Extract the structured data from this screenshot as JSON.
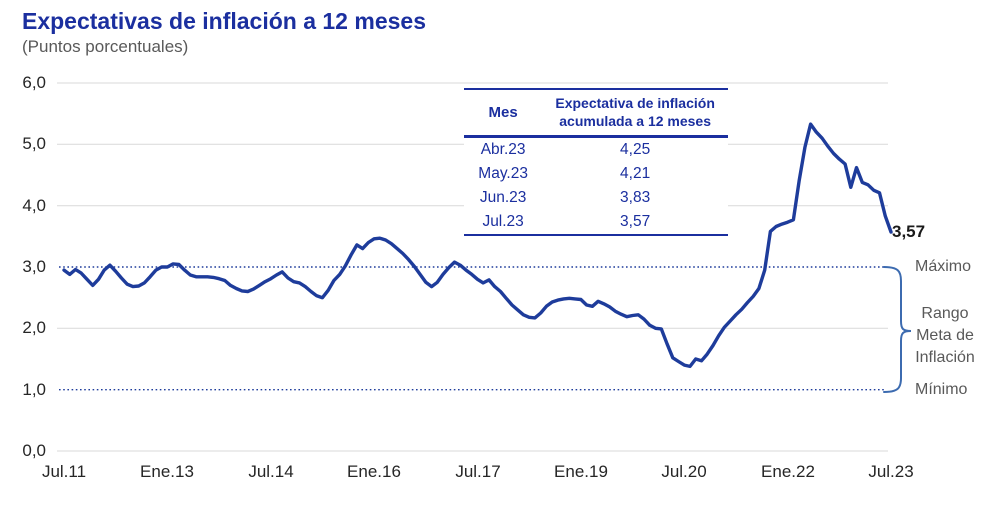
{
  "header": {
    "title": "Expectativas de inflación a 12 meses",
    "subtitle": "(Puntos porcentuales)"
  },
  "chart_data": {
    "type": "line",
    "title": "Expectativas de inflación a 12 meses",
    "ylabel": "(Puntos porcentuales)",
    "xlabel": "",
    "ylim": [
      0,
      6
    ],
    "grid": true,
    "frequency": "monthly",
    "x_start": "Jul.11",
    "x_end": "Jul.23",
    "x_ticks": [
      {
        "label": "Jul.11",
        "month_index": 0
      },
      {
        "label": "Ene.13",
        "month_index": 18
      },
      {
        "label": "Jul.14",
        "month_index": 36
      },
      {
        "label": "Ene.16",
        "month_index": 54
      },
      {
        "label": "Jul.17",
        "month_index": 72
      },
      {
        "label": "Ene.19",
        "month_index": 90
      },
      {
        "label": "Jul.20",
        "month_index": 108
      },
      {
        "label": "Ene.22",
        "month_index": 126
      },
      {
        "label": "Jul.23",
        "month_index": 144
      }
    ],
    "y_ticks": [
      {
        "label": "6,0",
        "value": 6
      },
      {
        "label": "5,0",
        "value": 5
      },
      {
        "label": "4,0",
        "value": 4
      },
      {
        "label": "3,0",
        "value": 3
      },
      {
        "label": "2,0",
        "value": 2
      },
      {
        "label": "1,0",
        "value": 1
      },
      {
        "label": "0,0",
        "value": 0
      }
    ],
    "reference_lines": [
      {
        "value": 3.0,
        "label": "Máximo",
        "style": "dotted"
      },
      {
        "value": 1.0,
        "label": "Mínimo",
        "style": "dotted"
      }
    ],
    "series": [
      {
        "name": "Expectativa de inflación acumulada a 12 meses",
        "last_value_label": "3,57",
        "values": [
          2.95,
          2.88,
          2.96,
          2.9,
          2.8,
          2.7,
          2.8,
          2.95,
          3.03,
          2.93,
          2.82,
          2.72,
          2.68,
          2.69,
          2.74,
          2.84,
          2.95,
          3.0,
          3.0,
          3.05,
          3.04,
          2.95,
          2.87,
          2.84,
          2.84,
          2.84,
          2.83,
          2.81,
          2.78,
          2.7,
          2.65,
          2.61,
          2.6,
          2.64,
          2.7,
          2.76,
          2.81,
          2.87,
          2.92,
          2.82,
          2.76,
          2.74,
          2.68,
          2.6,
          2.53,
          2.5,
          2.62,
          2.78,
          2.88,
          3.02,
          3.2,
          3.36,
          3.3,
          3.4,
          3.46,
          3.47,
          3.44,
          3.38,
          3.3,
          3.22,
          3.12,
          3.01,
          2.88,
          2.75,
          2.68,
          2.75,
          2.88,
          2.99,
          3.08,
          3.03,
          2.95,
          2.88,
          2.8,
          2.74,
          2.79,
          2.68,
          2.6,
          2.49,
          2.38,
          2.3,
          2.22,
          2.18,
          2.17,
          2.25,
          2.36,
          2.43,
          2.46,
          2.48,
          2.49,
          2.48,
          2.47,
          2.38,
          2.36,
          2.44,
          2.4,
          2.35,
          2.28,
          2.23,
          2.19,
          2.21,
          2.22,
          2.15,
          2.05,
          2.0,
          1.99,
          1.75,
          1.52,
          1.46,
          1.4,
          1.38,
          1.5,
          1.47,
          1.58,
          1.72,
          1.88,
          2.02,
          2.12,
          2.22,
          2.31,
          2.42,
          2.52,
          2.65,
          2.95,
          3.58,
          3.66,
          3.7,
          3.73,
          3.77,
          4.4,
          4.95,
          5.33,
          5.2,
          5.1,
          4.97,
          4.85,
          4.76,
          4.68,
          4.3,
          4.62,
          4.38,
          4.34,
          4.25,
          4.21,
          3.83,
          3.57
        ]
      }
    ]
  },
  "table": {
    "headers": [
      "Mes",
      "Expectativa de inflación acumulada a 12 meses"
    ],
    "rows": [
      {
        "mes": "Abr.23",
        "valor": "4,25"
      },
      {
        "mes": "May.23",
        "valor": "4,21"
      },
      {
        "mes": "Jun.23",
        "valor": "3,83"
      },
      {
        "mes": "Jul.23",
        "valor": "3,57"
      }
    ]
  },
  "annotations": {
    "end_value": "3,57",
    "max_label": "Máximo",
    "min_label": "Mínimo",
    "range_label_lines": [
      "Rango",
      "Meta de",
      "Inflación"
    ]
  },
  "colors": {
    "title_blue": "#1b2f9f",
    "line_blue": "#1e3c9b",
    "dotted_blue": "#1e3c9b",
    "bracket_blue": "#3c6bb0",
    "grid_gray": "#d9d9d9",
    "label_gray": "#595959",
    "axis_text": "#262626"
  }
}
